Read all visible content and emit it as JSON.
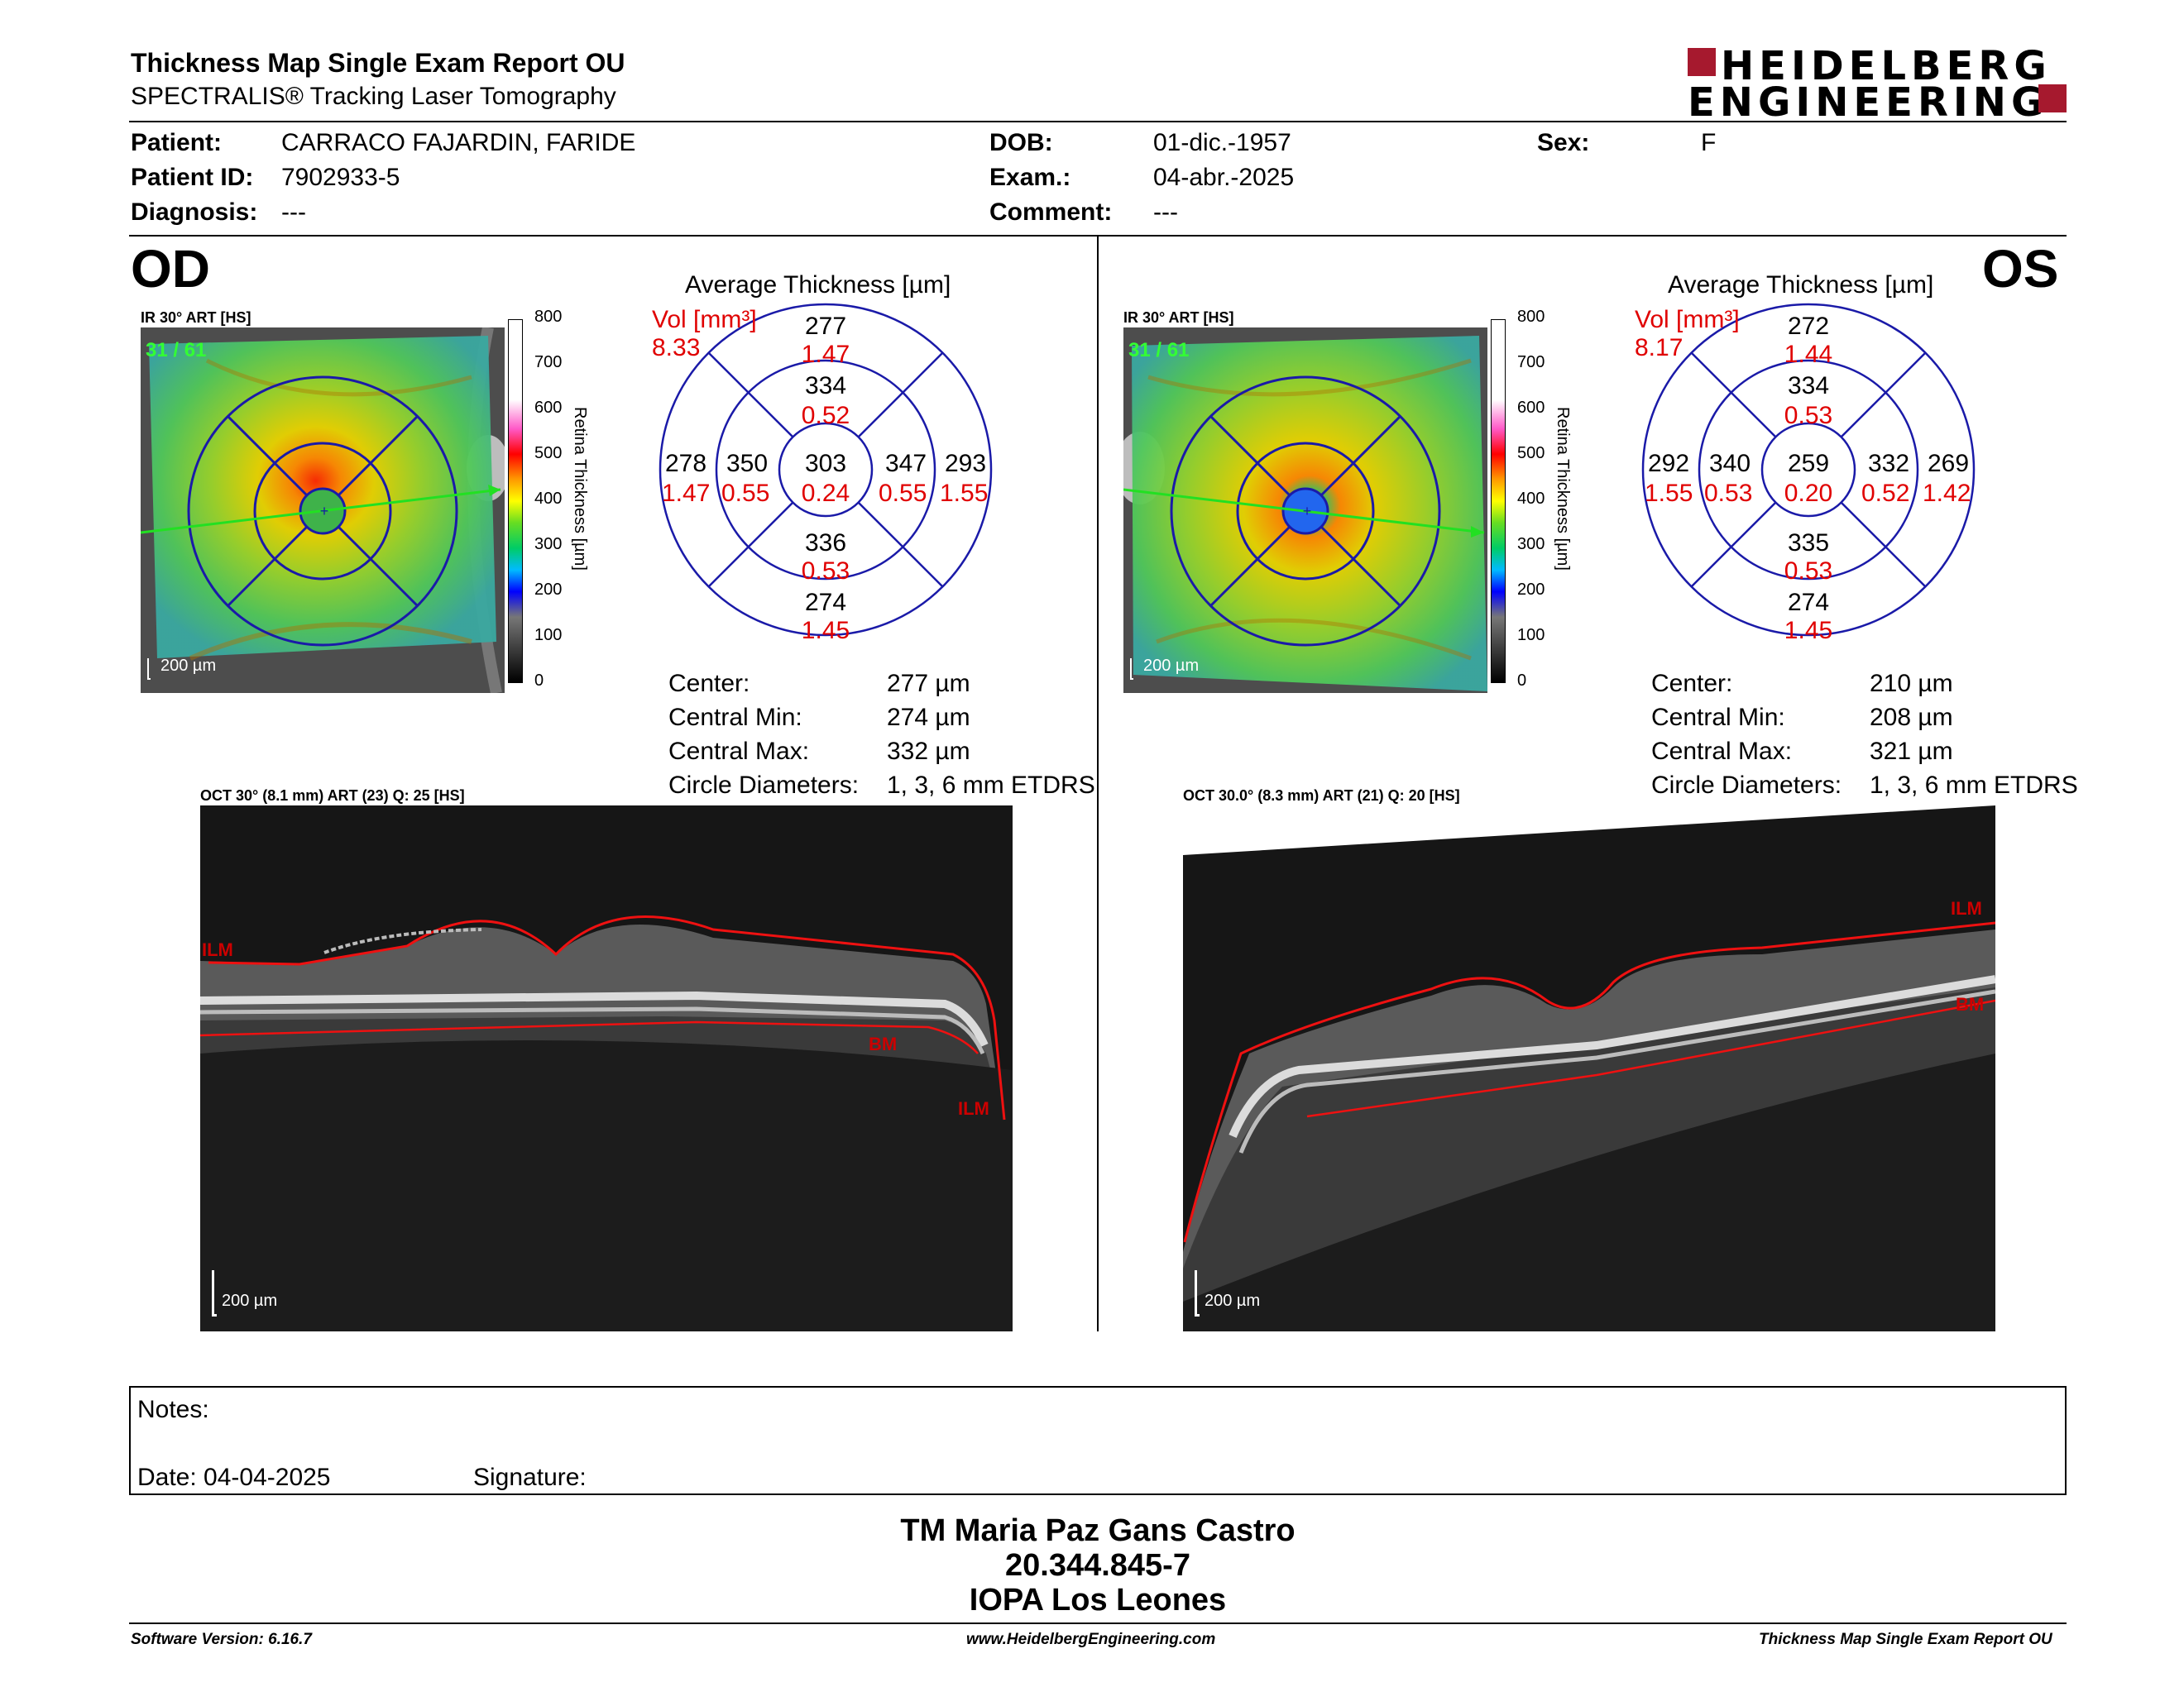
{
  "header": {
    "title": "Thickness Map Single Exam Report OU",
    "subtitle": "SPECTRALIS® Tracking Laser Tomography",
    "logo_line1": "HEIDELBERG",
    "logo_line2": "ENGINEERING"
  },
  "patient": {
    "patient_label": "Patient:",
    "patient_value": "CARRACO FAJARDIN, FARIDE",
    "id_label": "Patient ID:",
    "id_value": "7902933-5",
    "diagnosis_label": "Diagnosis:",
    "diagnosis_value": "---",
    "dob_label": "DOB:",
    "dob_value": "01-dic.-1957",
    "exam_label": "Exam.:",
    "exam_value": "04-abr.-2025",
    "comment_label": "Comment:",
    "comment_value": "---",
    "sex_label": "Sex:",
    "sex_value": "F"
  },
  "od": {
    "eye": "OD",
    "ir_label": "IR 30° ART [HS]",
    "frames": "31 / 61",
    "scale": "200 µm",
    "avg_title": "Average Thickness [µm]",
    "vol_label": "Vol [mm³]",
    "vol_value": "8.33",
    "sectors": {
      "outer_sup": {
        "t": "277",
        "v": "1.47"
      },
      "inner_sup": {
        "t": "334",
        "v": "0.52"
      },
      "outer_nas": {
        "t": "278",
        "v": "1.47"
      },
      "inner_nas": {
        "t": "350",
        "v": "0.55"
      },
      "center": {
        "t": "303",
        "v": "0.24"
      },
      "inner_temp": {
        "t": "347",
        "v": "0.55"
      },
      "outer_temp": {
        "t": "293",
        "v": "1.55"
      },
      "inner_inf": {
        "t": "336",
        "v": "0.53"
      },
      "outer_inf": {
        "t": "274",
        "v": "1.45"
      }
    },
    "stats": {
      "center_label": "Center:",
      "center_value": "277 µm",
      "min_label": "Central Min:",
      "min_value": "274 µm",
      "max_label": "Central Max:",
      "max_value": "332 µm",
      "circ_label": "Circle Diameters:",
      "circ_value": "1, 3, 6 mm ETDRS"
    },
    "oct_label": "OCT 30° (8.1 mm) ART (23) Q: 25 [HS]",
    "oct_scale": "200 µm",
    "ilm_label_left": "ILM",
    "ilm_label": "ILM",
    "bm_label": "BM"
  },
  "os": {
    "eye": "OS",
    "ir_label": "IR 30° ART [HS]",
    "frames": "31 / 61",
    "scale": "200 µm",
    "avg_title": "Average Thickness [µm]",
    "vol_label": "Vol [mm³]",
    "vol_value": "8.17",
    "sectors": {
      "outer_sup": {
        "t": "272",
        "v": "1.44"
      },
      "inner_sup": {
        "t": "334",
        "v": "0.53"
      },
      "outer_temp": {
        "t": "292",
        "v": "1.55"
      },
      "inner_temp": {
        "t": "340",
        "v": "0.53"
      },
      "center": {
        "t": "259",
        "v": "0.20"
      },
      "inner_nas": {
        "t": "332",
        "v": "0.52"
      },
      "outer_nas": {
        "t": "269",
        "v": "1.42"
      },
      "inner_inf": {
        "t": "335",
        "v": "0.53"
      },
      "outer_inf": {
        "t": "274",
        "v": "1.45"
      }
    },
    "stats": {
      "center_label": "Center:",
      "center_value": "210 µm",
      "min_label": "Central Min:",
      "min_value": "208 µm",
      "max_label": "Central Max:",
      "max_value": "321 µm",
      "circ_label": "Circle Diameters:",
      "circ_value": "1, 3, 6 mm ETDRS"
    },
    "oct_label": "OCT 30.0° (8.3 mm) ART (21) Q: 20 [HS]",
    "oct_scale": "200 µm",
    "ilm_label": "ILM",
    "bm_label": "BM"
  },
  "colorbar": {
    "ticks": [
      "800",
      "700",
      "600",
      "500",
      "400",
      "300",
      "200",
      "100",
      "0"
    ],
    "title": "Retina Thickness [µm]"
  },
  "notes": {
    "notes_label": "Notes:",
    "date_label": "Date: 04-04-2025",
    "signature_label": "Signature:"
  },
  "signature_block": {
    "name": "TM Maria Paz Gans Castro",
    "id": "20.344.845-7",
    "org": "IOPA Los Leones"
  },
  "footer": {
    "version": "Software Version: 6.16.7",
    "url": "www.HeidelbergEngineering.com",
    "report": "Thickness Map Single Exam Report OU"
  },
  "colors": {
    "accent_red": "#e00000",
    "logo_red": "#a6192e",
    "grid_blue": "#1a1aa8"
  }
}
